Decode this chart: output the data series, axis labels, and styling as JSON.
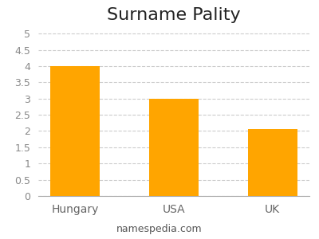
{
  "title": "Surname Pality",
  "categories": [
    "Hungary",
    "USA",
    "UK"
  ],
  "values": [
    4.0,
    3.0,
    2.05
  ],
  "bar_color": "#FFA500",
  "ylim": [
    0,
    5.15
  ],
  "yticks": [
    0,
    0.5,
    1.0,
    1.5,
    2.0,
    2.5,
    3.0,
    3.5,
    4.0,
    4.5,
    5.0
  ],
  "grid_color": "#cccccc",
  "background_color": "#ffffff",
  "title_fontsize": 16,
  "tick_fontsize": 9,
  "xlabel_fontsize": 10,
  "footer_text": "namespedia.com",
  "footer_fontsize": 9,
  "bar_width": 0.5
}
